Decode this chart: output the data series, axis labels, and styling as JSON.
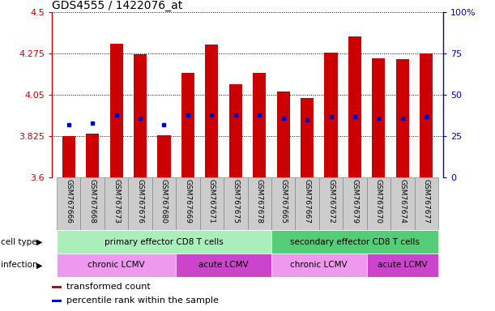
{
  "title": "GDS4555 / 1422076_at",
  "samples": [
    "GSM767666",
    "GSM767668",
    "GSM767673",
    "GSM767676",
    "GSM767680",
    "GSM767669",
    "GSM767671",
    "GSM767675",
    "GSM767678",
    "GSM767665",
    "GSM767667",
    "GSM767672",
    "GSM767679",
    "GSM767670",
    "GSM767674",
    "GSM767677"
  ],
  "bar_values": [
    3.825,
    3.84,
    4.33,
    4.27,
    3.83,
    4.17,
    4.325,
    4.11,
    4.17,
    4.07,
    4.035,
    4.28,
    4.37,
    4.25,
    4.245,
    4.275
  ],
  "percentile_values_pct": [
    32,
    33,
    38,
    36,
    32,
    38,
    38,
    38,
    38,
    36,
    35,
    37,
    37,
    36,
    36,
    37
  ],
  "ymin": 3.6,
  "ymax": 4.5,
  "yticks": [
    3.6,
    3.825,
    4.05,
    4.275,
    4.5
  ],
  "ytick_labels": [
    "3.6",
    "3.825",
    "4.05",
    "4.275",
    "4.5"
  ],
  "right_yticks": [
    0,
    25,
    50,
    75,
    100
  ],
  "bar_color": "#cc0000",
  "blue_color": "#0000bb",
  "cell_type_groups": [
    {
      "label": "primary effector CD8 T cells",
      "start": 0,
      "end": 9,
      "color": "#aaeebb"
    },
    {
      "label": "secondary effector CD8 T cells",
      "start": 9,
      "end": 16,
      "color": "#55cc77"
    }
  ],
  "infection_groups": [
    {
      "label": "chronic LCMV",
      "start": 0,
      "end": 5,
      "color": "#ee99ee"
    },
    {
      "label": "acute LCMV",
      "start": 5,
      "end": 9,
      "color": "#cc44cc"
    },
    {
      "label": "chronic LCMV",
      "start": 9,
      "end": 13,
      "color": "#ee99ee"
    },
    {
      "label": "acute LCMV",
      "start": 13,
      "end": 16,
      "color": "#cc44cc"
    }
  ],
  "legend_items": [
    {
      "label": "transformed count",
      "color": "#cc0000"
    },
    {
      "label": "percentile rank within the sample",
      "color": "#0000bb"
    }
  ],
  "xlabel_color": "#cc0000",
  "right_axis_color": "#0000bb",
  "background_color": "#ffffff",
  "xticklabel_bg": "#cccccc",
  "row_label_cell_type": "cell type",
  "row_label_infection": "infection"
}
